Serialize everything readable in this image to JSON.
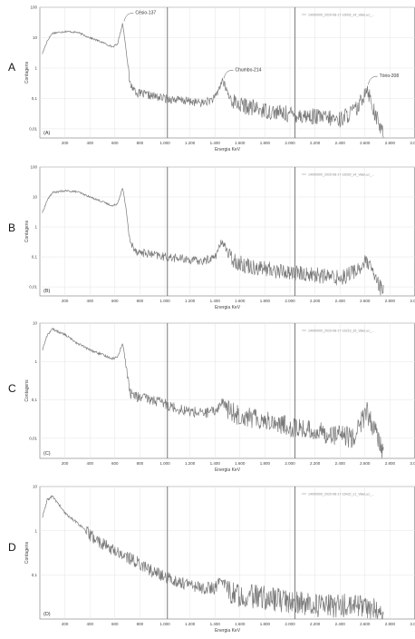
{
  "chart_data": [
    {
      "type": "line",
      "panel": "A",
      "tag": "(A)",
      "xlabel": "Energia KeV",
      "ylabel": "Contagens",
      "yscale": "log",
      "ylim": [
        0.005,
        100
      ],
      "ytick_labels": [
        "100",
        "10",
        "1",
        "0,1",
        "0,01"
      ],
      "xlim": [
        0,
        3000
      ],
      "xtick_labels": [
        "200",
        "400",
        "600",
        "800",
        "1.000",
        "1.200",
        "1.400",
        "1.600",
        "1.800",
        "2.000",
        "2.200",
        "2.400",
        "2.600",
        "2.800",
        "3.000"
      ],
      "legend": "14000000_2020-08-17-16003_s4_ValeLuz_...",
      "grid": true,
      "vlines": [
        1020,
        2040
      ],
      "annotations": [
        {
          "text": "Césio-137",
          "x": 662,
          "y": 30
        },
        {
          "text": "Chumbo-214",
          "x": 1460,
          "y": 0.4
        },
        {
          "text": "Tório-208",
          "x": 2614,
          "y": 0.25
        }
      ],
      "series": [
        {
          "x": [
            20,
            60,
            100,
            200,
            300,
            400,
            500,
            580,
            620,
            662,
            690,
            720,
            780,
            900,
            1000,
            1100,
            1200,
            1300,
            1400,
            1460,
            1520,
            1600,
            1800,
            2000,
            2200,
            2400,
            2550,
            2614,
            2680,
            2750
          ],
          "y": [
            3,
            8,
            14,
            16,
            15,
            10,
            7,
            5,
            6,
            30,
            4,
            0.3,
            0.15,
            0.12,
            0.1,
            0.09,
            0.08,
            0.07,
            0.1,
            0.4,
            0.1,
            0.06,
            0.04,
            0.03,
            0.025,
            0.02,
            0.05,
            0.25,
            0.03,
            0.006
          ]
        }
      ]
    },
    {
      "type": "line",
      "panel": "B",
      "tag": "(B)",
      "xlabel": "Energia KeV",
      "ylabel": "Contagens",
      "yscale": "log",
      "ylim": [
        0.005,
        100
      ],
      "ytick_labels": [
        "100",
        "10",
        "1",
        "0,1",
        "0,01"
      ],
      "xlim": [
        0,
        3000
      ],
      "xtick_labels": [
        "200",
        "400",
        "600",
        "800",
        "1.000",
        "1.200",
        "1.400",
        "1.600",
        "1.800",
        "2.000",
        "2.200",
        "2.400",
        "2.600",
        "2.800",
        "3.000"
      ],
      "legend": "14000000_2020-08-17-16029_s4_ValeLuz_...",
      "grid": true,
      "vlines": [
        1020,
        2040
      ],
      "series": [
        {
          "x": [
            20,
            60,
            100,
            200,
            300,
            400,
            500,
            580,
            620,
            662,
            690,
            720,
            780,
            900,
            1000,
            1100,
            1200,
            1300,
            1400,
            1460,
            1520,
            1600,
            1800,
            2000,
            2200,
            2400,
            2550,
            2614,
            2680,
            2750
          ],
          "y": [
            3,
            8,
            14,
            16,
            15,
            10,
            7,
            5,
            6,
            20,
            4,
            0.3,
            0.15,
            0.12,
            0.1,
            0.09,
            0.08,
            0.07,
            0.1,
            0.35,
            0.1,
            0.06,
            0.04,
            0.03,
            0.025,
            0.02,
            0.04,
            0.07,
            0.02,
            0.006
          ]
        }
      ]
    },
    {
      "type": "line",
      "panel": "C",
      "tag": "(C)",
      "xlabel": "Energia KeV",
      "ylabel": "Contagens",
      "yscale": "log",
      "ylim": [
        0.003,
        10
      ],
      "ytick_labels": [
        "10",
        "1",
        "0,1",
        "0,01"
      ],
      "xlim": [
        0,
        3000
      ],
      "xtick_labels": [
        "200",
        "400",
        "600",
        "800",
        "1.000",
        "1.200",
        "1.400",
        "1.600",
        "1.800",
        "2.000",
        "2.200",
        "2.400",
        "2.600",
        "2.800",
        "3.000"
      ],
      "legend": "14000000_2020-08-17-16219_s5_ValeLuz_...",
      "grid": true,
      "vlines": [
        1020,
        2040
      ],
      "series": [
        {
          "x": [
            20,
            60,
            100,
            200,
            300,
            400,
            500,
            580,
            620,
            662,
            690,
            720,
            780,
            900,
            1000,
            1100,
            1200,
            1300,
            1400,
            1460,
            1520,
            1600,
            1800,
            2000,
            2200,
            2400,
            2500,
            2550,
            2614,
            2680,
            2750
          ],
          "y": [
            2,
            5,
            7,
            5,
            3,
            2,
            1.5,
            1.2,
            1.3,
            3,
            0.8,
            0.15,
            0.12,
            0.1,
            0.08,
            0.06,
            0.05,
            0.045,
            0.05,
            0.09,
            0.05,
            0.04,
            0.03,
            0.02,
            0.015,
            0.012,
            0.01,
            0.02,
            0.05,
            0.015,
            0.004
          ]
        }
      ]
    },
    {
      "type": "line",
      "panel": "D",
      "tag": "(D)",
      "xlabel": "Energia KeV",
      "ylabel": "Contagens",
      "yscale": "log",
      "ylim": [
        0.01,
        10
      ],
      "ytick_labels": [
        "10",
        "1",
        "0,1"
      ],
      "xlim": [
        0,
        3000
      ],
      "xtick_labels": [
        "200",
        "400",
        "600",
        "800",
        "1.000",
        "1.200",
        "1.400",
        "1.600",
        "1.800",
        "2.000",
        "2.200",
        "2.400",
        "2.600",
        "2.800",
        "3.000"
      ],
      "legend": "14000000_2020-08-17-16422_s1_ValeLuz_...",
      "grid": true,
      "vlines": [
        1020,
        2040
      ],
      "series": [
        {
          "x": [
            20,
            60,
            100,
            150,
            200,
            300,
            400,
            500,
            600,
            700,
            800,
            900,
            1000,
            1100,
            1200,
            1300,
            1400,
            1460,
            1520,
            1600,
            1800,
            2000,
            2200,
            2400,
            2600,
            2700,
            2750
          ],
          "y": [
            2,
            5,
            6,
            4,
            2.5,
            1.5,
            0.8,
            0.5,
            0.35,
            0.25,
            0.18,
            0.12,
            0.09,
            0.07,
            0.06,
            0.05,
            0.05,
            0.08,
            0.04,
            0.035,
            0.03,
            0.025,
            0.02,
            0.02,
            0.02,
            0.015,
            0.012
          ]
        }
      ]
    }
  ]
}
